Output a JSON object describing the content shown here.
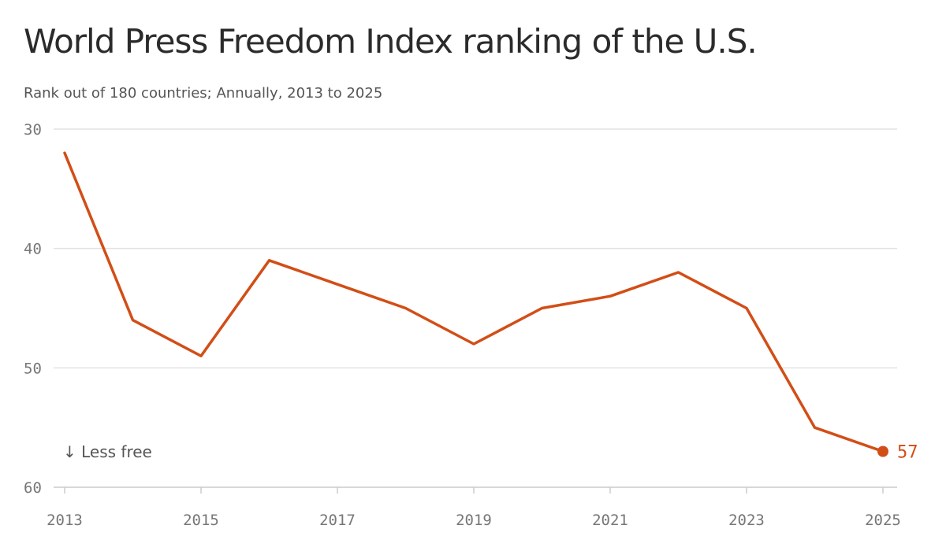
{
  "chart_data": {
    "type": "line",
    "title": "World Press Freedom Index ranking of the U.S.",
    "subtitle": "Rank out of 180 countries; Annually, 2013 to 2025",
    "x": [
      2013,
      2014,
      2015,
      2016,
      2017,
      2018,
      2019,
      2020,
      2021,
      2022,
      2023,
      2024,
      2025
    ],
    "series": [
      {
        "values": [
          32,
          46,
          49,
          41,
          43,
          45,
          48,
          45,
          44,
          42,
          45,
          55,
          57
        ]
      }
    ],
    "xticks": [
      "2013",
      "2015",
      "2017",
      "2019",
      "2021",
      "2023",
      "2025"
    ],
    "yticks": [
      "30",
      "40",
      "50",
      "60"
    ],
    "ylim": [
      30,
      60
    ],
    "y_inverted": true,
    "grid": "horizontal",
    "annotation": "↓ Less free",
    "end_label": "57",
    "line_color": "#d24e17",
    "grid_color": "#e2e2e2",
    "axis_color": "#cccccc"
  }
}
